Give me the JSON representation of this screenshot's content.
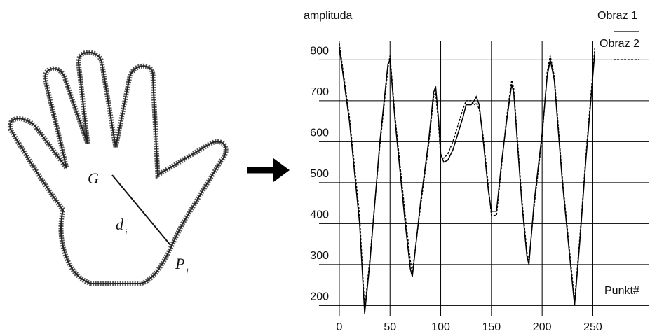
{
  "diagram": {
    "labels": [
      "G",
      "d",
      "i",
      "P",
      "i"
    ]
  },
  "chart_data": {
    "type": "line",
    "ylabel": "amplituda",
    "xlabel": "Punkt#",
    "x": [
      0,
      10,
      20,
      25,
      30,
      40,
      48,
      50,
      55,
      65,
      70,
      72,
      80,
      88,
      93,
      95,
      98,
      100,
      103,
      107,
      112,
      117,
      122,
      125,
      130,
      133,
      135,
      138,
      142,
      147,
      150,
      155,
      160,
      165,
      170,
      172,
      177,
      180,
      185,
      187,
      192,
      200,
      205,
      208,
      212,
      220,
      228,
      232,
      237,
      243,
      248,
      252
    ],
    "series": [
      {
        "name": "Obraz 1",
        "color": "#000000",
        "style": "solid",
        "values": [
          830,
          650,
          400,
          180,
          300,
          600,
          790,
          800,
          650,
          400,
          290,
          270,
          450,
          600,
          720,
          735,
          650,
          570,
          550,
          555,
          580,
          620,
          660,
          690,
          690,
          700,
          710,
          690,
          600,
          480,
          430,
          430,
          550,
          650,
          740,
          720,
          550,
          450,
          320,
          300,
          450,
          620,
          760,
          800,
          750,
          500,
          300,
          200,
          350,
          550,
          700,
          820
        ]
      },
      {
        "name": "Obraz 2",
        "color": "#000000",
        "style": "dashed",
        "values": [
          840,
          660,
          420,
          190,
          310,
          590,
          780,
          810,
          660,
          420,
          310,
          280,
          440,
          590,
          710,
          720,
          640,
          560,
          560,
          570,
          600,
          640,
          680,
          700,
          700,
          690,
          695,
          680,
          610,
          490,
          420,
          420,
          540,
          660,
          750,
          730,
          560,
          460,
          330,
          310,
          440,
          610,
          770,
          810,
          760,
          510,
          310,
          210,
          360,
          560,
          710,
          830
        ]
      }
    ],
    "xlim": [
      -20,
      305
    ],
    "ylim": [
      175,
      845
    ],
    "xticks": [
      0,
      50,
      100,
      150,
      200,
      250
    ],
    "yticks": [
      200,
      300,
      400,
      500,
      600,
      700,
      800
    ],
    "grid": true
  }
}
